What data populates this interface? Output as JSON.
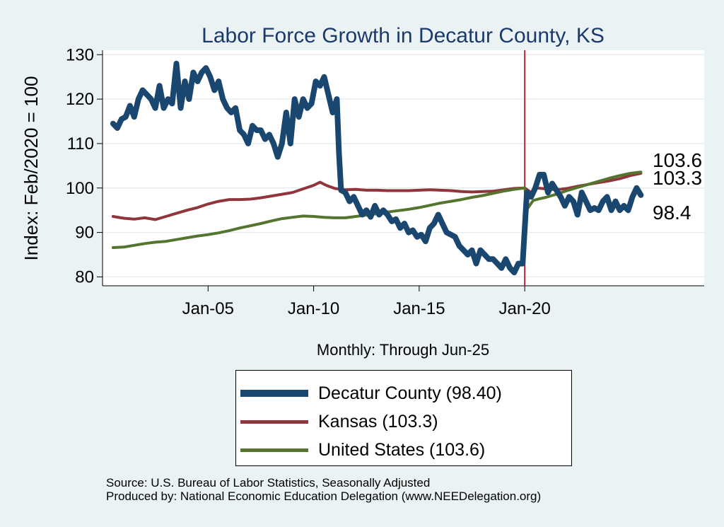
{
  "chart_data": {
    "type": "line",
    "title": "Labor Force Growth in Decatur  County, KS",
    "ylabel": "Index: Feb/2020 = 100",
    "xlabel": "Monthly: Through Jun-25",
    "ylim": [
      78,
      131
    ],
    "xlim": [
      2000.0,
      2028.5
    ],
    "yticks": [
      80,
      90,
      100,
      110,
      120,
      130
    ],
    "xticks": [
      {
        "value": 2005.0,
        "label": "Jan-05"
      },
      {
        "value": 2010.0,
        "label": "Jan-10"
      },
      {
        "value": 2015.0,
        "label": "Jan-15"
      },
      {
        "value": 2020.0,
        "label": "Jan-20"
      }
    ],
    "reference_line_x": 2020.0,
    "series": [
      {
        "name": "Decatur  County",
        "color": "#1a476f",
        "end_label": "98.4",
        "points": [
          [
            2000.5,
            114.5
          ],
          [
            2000.7,
            113.5
          ],
          [
            2000.9,
            115.5
          ],
          [
            2001.1,
            116
          ],
          [
            2001.3,
            118.5
          ],
          [
            2001.5,
            116
          ],
          [
            2001.7,
            120
          ],
          [
            2001.9,
            122
          ],
          [
            2002.1,
            121
          ],
          [
            2002.3,
            120
          ],
          [
            2002.5,
            118
          ],
          [
            2002.7,
            123
          ],
          [
            2002.9,
            118
          ],
          [
            2003.1,
            120
          ],
          [
            2003.3,
            119
          ],
          [
            2003.5,
            128
          ],
          [
            2003.7,
            118
          ],
          [
            2003.9,
            124
          ],
          [
            2004.1,
            120
          ],
          [
            2004.3,
            126
          ],
          [
            2004.5,
            124
          ],
          [
            2004.7,
            126
          ],
          [
            2004.9,
            127
          ],
          [
            2005.1,
            125
          ],
          [
            2005.3,
            122
          ],
          [
            2005.5,
            124
          ],
          [
            2005.7,
            120
          ],
          [
            2005.9,
            118
          ],
          [
            2006.1,
            117
          ],
          [
            2006.3,
            118
          ],
          [
            2006.5,
            113
          ],
          [
            2006.7,
            112
          ],
          [
            2006.9,
            110
          ],
          [
            2007.1,
            114
          ],
          [
            2007.3,
            113
          ],
          [
            2007.5,
            113
          ],
          [
            2007.7,
            111
          ],
          [
            2007.9,
            112
          ],
          [
            2008.1,
            110
          ],
          [
            2008.3,
            107
          ],
          [
            2008.5,
            110
          ],
          [
            2008.7,
            117
          ],
          [
            2008.9,
            110
          ],
          [
            2009.1,
            120
          ],
          [
            2009.3,
            116
          ],
          [
            2009.5,
            120
          ],
          [
            2009.7,
            118
          ],
          [
            2009.9,
            119
          ],
          [
            2010.1,
            124
          ],
          [
            2010.3,
            123
          ],
          [
            2010.5,
            125
          ],
          [
            2010.7,
            121
          ],
          [
            2010.9,
            117
          ],
          [
            2011.1,
            120
          ],
          [
            2011.2,
            108
          ],
          [
            2011.3,
            99.5
          ],
          [
            2011.5,
            99
          ],
          [
            2011.7,
            97
          ],
          [
            2011.9,
            98
          ],
          [
            2012.1,
            96
          ],
          [
            2012.3,
            94
          ],
          [
            2012.5,
            95
          ],
          [
            2012.7,
            93.5
          ],
          [
            2012.9,
            96
          ],
          [
            2013.1,
            94
          ],
          [
            2013.3,
            95
          ],
          [
            2013.5,
            94
          ],
          [
            2013.7,
            92.5
          ],
          [
            2013.9,
            93
          ],
          [
            2014.1,
            91
          ],
          [
            2014.3,
            92
          ],
          [
            2014.5,
            90
          ],
          [
            2014.7,
            90.5
          ],
          [
            2014.9,
            89
          ],
          [
            2015.1,
            89.5
          ],
          [
            2015.3,
            88
          ],
          [
            2015.5,
            91
          ],
          [
            2015.7,
            92
          ],
          [
            2015.9,
            94
          ],
          [
            2016.1,
            92
          ],
          [
            2016.3,
            90
          ],
          [
            2016.5,
            89.5
          ],
          [
            2016.7,
            89
          ],
          [
            2016.9,
            87
          ],
          [
            2017.1,
            86
          ],
          [
            2017.3,
            85
          ],
          [
            2017.5,
            86
          ],
          [
            2017.7,
            83
          ],
          [
            2017.9,
            86
          ],
          [
            2018.1,
            85
          ],
          [
            2018.3,
            84
          ],
          [
            2018.5,
            84
          ],
          [
            2018.7,
            83
          ],
          [
            2018.9,
            82
          ],
          [
            2019.1,
            84
          ],
          [
            2019.3,
            82
          ],
          [
            2019.5,
            81
          ],
          [
            2019.7,
            83
          ],
          [
            2019.9,
            83
          ],
          [
            2020.1,
            99
          ],
          [
            2020.3,
            98
          ],
          [
            2020.5,
            100
          ],
          [
            2020.7,
            103
          ],
          [
            2020.9,
            103
          ],
          [
            2021.1,
            99
          ],
          [
            2021.3,
            101
          ],
          [
            2021.5,
            99.5
          ],
          [
            2021.7,
            98
          ],
          [
            2021.9,
            96
          ],
          [
            2022.1,
            98
          ],
          [
            2022.3,
            97
          ],
          [
            2022.5,
            94
          ],
          [
            2022.7,
            99
          ],
          [
            2022.9,
            97
          ],
          [
            2023.1,
            95
          ],
          [
            2023.3,
            95.5
          ],
          [
            2023.5,
            95
          ],
          [
            2023.7,
            97
          ],
          [
            2023.9,
            98
          ],
          [
            2024.1,
            95
          ],
          [
            2024.3,
            97
          ],
          [
            2024.5,
            95
          ],
          [
            2024.7,
            96
          ],
          [
            2024.9,
            95
          ],
          [
            2025.1,
            98
          ],
          [
            2025.3,
            100
          ],
          [
            2025.5,
            98.4
          ]
        ]
      },
      {
        "name": "Kansas",
        "color": "#90353b",
        "end_label": "103.3",
        "points": [
          [
            2000.5,
            93.6
          ],
          [
            2001.0,
            93.2
          ],
          [
            2001.5,
            93.0
          ],
          [
            2002.0,
            93.3
          ],
          [
            2002.5,
            92.9
          ],
          [
            2003.0,
            93.6
          ],
          [
            2003.5,
            94.3
          ],
          [
            2004.0,
            95.0
          ],
          [
            2004.5,
            95.6
          ],
          [
            2005.0,
            96.4
          ],
          [
            2005.5,
            97.0
          ],
          [
            2006.0,
            97.4
          ],
          [
            2006.5,
            97.4
          ],
          [
            2007.0,
            97.5
          ],
          [
            2007.5,
            97.8
          ],
          [
            2008.0,
            98.2
          ],
          [
            2008.5,
            98.6
          ],
          [
            2009.0,
            99.0
          ],
          [
            2009.5,
            99.8
          ],
          [
            2010.0,
            100.6
          ],
          [
            2010.3,
            101.3
          ],
          [
            2010.6,
            100.6
          ],
          [
            2011.0,
            99.9
          ],
          [
            2011.5,
            99.6
          ],
          [
            2012.0,
            99.7
          ],
          [
            2012.5,
            99.5
          ],
          [
            2013.0,
            99.5
          ],
          [
            2013.5,
            99.4
          ],
          [
            2014.0,
            99.4
          ],
          [
            2014.5,
            99.4
          ],
          [
            2015.0,
            99.5
          ],
          [
            2015.5,
            99.6
          ],
          [
            2016.0,
            99.5
          ],
          [
            2016.5,
            99.4
          ],
          [
            2017.0,
            99.2
          ],
          [
            2017.5,
            99.1
          ],
          [
            2018.0,
            99.2
          ],
          [
            2018.5,
            99.3
          ],
          [
            2019.0,
            99.6
          ],
          [
            2019.5,
            99.9
          ],
          [
            2020.0,
            100.0
          ],
          [
            2020.3,
            99.0
          ],
          [
            2020.6,
            100.0
          ],
          [
            2021.0,
            99.8
          ],
          [
            2021.5,
            99.6
          ],
          [
            2022.0,
            99.9
          ],
          [
            2022.5,
            100.4
          ],
          [
            2023.0,
            100.8
          ],
          [
            2023.5,
            101.2
          ],
          [
            2024.0,
            101.6
          ],
          [
            2024.5,
            102.1
          ],
          [
            2025.0,
            102.8
          ],
          [
            2025.5,
            103.3
          ]
        ]
      },
      {
        "name": "United States",
        "color": "#55752f",
        "end_label": "103.6",
        "points": [
          [
            2000.5,
            86.6
          ],
          [
            2001.0,
            86.7
          ],
          [
            2001.5,
            87.1
          ],
          [
            2002.0,
            87.5
          ],
          [
            2002.5,
            87.8
          ],
          [
            2003.0,
            88.0
          ],
          [
            2003.5,
            88.4
          ],
          [
            2004.0,
            88.8
          ],
          [
            2004.5,
            89.2
          ],
          [
            2005.0,
            89.5
          ],
          [
            2005.5,
            89.9
          ],
          [
            2006.0,
            90.4
          ],
          [
            2006.5,
            91.0
          ],
          [
            2007.0,
            91.5
          ],
          [
            2007.5,
            92.0
          ],
          [
            2008.0,
            92.6
          ],
          [
            2008.5,
            93.1
          ],
          [
            2009.0,
            93.4
          ],
          [
            2009.5,
            93.7
          ],
          [
            2010.0,
            93.6
          ],
          [
            2010.5,
            93.4
          ],
          [
            2011.0,
            93.3
          ],
          [
            2011.5,
            93.3
          ],
          [
            2012.0,
            93.6
          ],
          [
            2012.5,
            93.9
          ],
          [
            2013.0,
            94.2
          ],
          [
            2013.5,
            94.6
          ],
          [
            2014.0,
            94.9
          ],
          [
            2014.5,
            95.2
          ],
          [
            2015.0,
            95.6
          ],
          [
            2015.5,
            96.1
          ],
          [
            2016.0,
            96.6
          ],
          [
            2016.5,
            97.0
          ],
          [
            2017.0,
            97.4
          ],
          [
            2017.5,
            97.9
          ],
          [
            2018.0,
            98.3
          ],
          [
            2018.5,
            98.8
          ],
          [
            2019.0,
            99.3
          ],
          [
            2019.5,
            99.7
          ],
          [
            2020.0,
            100.0
          ],
          [
            2020.15,
            95.5
          ],
          [
            2020.4,
            97.2
          ],
          [
            2020.7,
            97.6
          ],
          [
            2021.0,
            97.9
          ],
          [
            2021.5,
            98.6
          ],
          [
            2022.0,
            99.4
          ],
          [
            2022.5,
            100.1
          ],
          [
            2023.0,
            100.8
          ],
          [
            2023.5,
            101.5
          ],
          [
            2024.0,
            102.2
          ],
          [
            2024.5,
            102.8
          ],
          [
            2025.0,
            103.3
          ],
          [
            2025.5,
            103.6
          ]
        ]
      }
    ]
  },
  "legend": {
    "items": [
      {
        "label": "Decatur  County (98.40)",
        "color": "#1a476f"
      },
      {
        "label": "Kansas (103.3)",
        "color": "#90353b"
      },
      {
        "label": "United States (103.6)",
        "color": "#55752f"
      }
    ]
  },
  "footer": {
    "source": "Source: U.S. Bureau of Labor Statistics, Seasonally Adjusted",
    "produced_by": "Produced by: National Economic Education Delegation (www.NEEDelegation.org)"
  }
}
